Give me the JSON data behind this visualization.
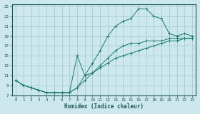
{
  "bg_color": "#cce8ec",
  "grid_color": "#9dc8cf",
  "line_color": "#1a7a6e",
  "xlabel": "Humidex (Indice chaleur)",
  "xlim": [
    -0.5,
    23.5
  ],
  "ylim": [
    7,
    25.5
  ],
  "xtick_labels": [
    "0",
    "1",
    "2",
    "3",
    "4",
    "5",
    "6",
    "7",
    "8",
    "9",
    "10",
    "11",
    "12",
    "13",
    "14",
    "15",
    "16",
    "17",
    "18",
    "19",
    "20",
    "21",
    "22",
    "23"
  ],
  "ytick_labels": [
    "7",
    "9",
    "11",
    "13",
    "15",
    "17",
    "19",
    "21",
    "23",
    "25"
  ],
  "ytick_vals": [
    7,
    9,
    11,
    13,
    15,
    17,
    19,
    21,
    23,
    25
  ],
  "line1_x": [
    0,
    1,
    2,
    3,
    4,
    5,
    6,
    7,
    8,
    9,
    10,
    11,
    12,
    13,
    14,
    15,
    16,
    17,
    18,
    19,
    20,
    21,
    22,
    23
  ],
  "line1_y": [
    10,
    9,
    8.5,
    8,
    7.5,
    7.5,
    7.5,
    7.5,
    8.5,
    11,
    13.5,
    16,
    19,
    21,
    22,
    22.5,
    24.5,
    24.5,
    23,
    22.5,
    19.5,
    19,
    19.5,
    19
  ],
  "line2_x": [
    0,
    1,
    2,
    3,
    4,
    5,
    6,
    7,
    8,
    9,
    10,
    11,
    12,
    13,
    14,
    15,
    16,
    17,
    18,
    19,
    20,
    21,
    22,
    23
  ],
  "line2_y": [
    10,
    9,
    8.5,
    8,
    7.5,
    7.5,
    7.5,
    7.5,
    8.5,
    10,
    11.5,
    13,
    14.5,
    16,
    17,
    17.5,
    17.5,
    18,
    18,
    18,
    18.5,
    18.5,
    18.5,
    18.5
  ],
  "line3_x": [
    0,
    1,
    2,
    3,
    4,
    5,
    6,
    7,
    8,
    9,
    10,
    11,
    12,
    13,
    14,
    15,
    16,
    17,
    18,
    19,
    20,
    21,
    22,
    23
  ],
  "line3_y": [
    10,
    9,
    8.5,
    8,
    7.5,
    7.5,
    7.5,
    7.5,
    15,
    11,
    11.5,
    12.5,
    13.5,
    14.5,
    15,
    15.5,
    16,
    16.5,
    17,
    17.5,
    18,
    18,
    18.5,
    18.5
  ]
}
